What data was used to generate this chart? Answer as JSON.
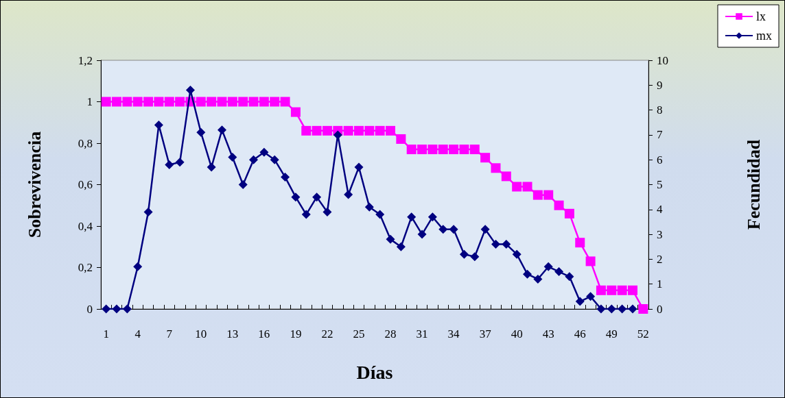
{
  "chart_data": {
    "type": "line",
    "xlabel": "Días",
    "ylabel": "Sobrevivencia",
    "y2label": "Fecundidad",
    "categories": [
      "1",
      null,
      null,
      "4",
      null,
      null,
      "7",
      null,
      null,
      "10",
      null,
      null,
      "13",
      null,
      null,
      "16",
      null,
      null,
      "19",
      null,
      null,
      "22",
      null,
      null,
      "25",
      null,
      null,
      "28",
      null,
      null,
      "31",
      null,
      null,
      "34",
      null,
      null,
      "37",
      null,
      null,
      "40",
      null,
      null,
      "43",
      null,
      null,
      "46",
      null,
      null,
      "49",
      null,
      null,
      "52"
    ],
    "series": [
      {
        "name": "lx",
        "color": "#ff00ff",
        "marker": "square",
        "values": [
          1,
          1,
          1,
          1,
          1,
          1,
          1,
          1,
          1,
          1,
          1,
          1,
          1,
          1,
          1,
          1,
          1,
          1,
          0.95,
          0.86,
          0.86,
          0.86,
          0.86,
          0.86,
          0.86,
          0.86,
          0.86,
          0.86,
          0.82,
          0.77,
          0.77,
          0.77,
          0.77,
          0.77,
          0.77,
          0.77,
          0.73,
          0.68,
          0.64,
          0.59,
          0.59,
          0.55,
          0.55,
          0.5,
          0.46,
          0.32,
          0.23,
          0.09,
          0.09,
          0.09,
          0.09,
          0
        ]
      },
      {
        "name": "mx",
        "color": "#000080",
        "marker": "diamond",
        "axis": "y2",
        "values": [
          0,
          0,
          0,
          1.7,
          3.9,
          7.4,
          5.8,
          5.9,
          8.8,
          7.1,
          5.7,
          7.2,
          6.1,
          5.0,
          6.0,
          6.3,
          6.0,
          5.3,
          4.5,
          3.8,
          4.5,
          3.9,
          7.0,
          4.6,
          5.7,
          4.1,
          3.8,
          2.8,
          2.5,
          3.7,
          3.0,
          3.7,
          3.2,
          3.2,
          2.2,
          2.1,
          3.2,
          2.6,
          2.6,
          2.2,
          1.4,
          1.2,
          1.7,
          1.5,
          1.3,
          0.3,
          0.5,
          0,
          0,
          0,
          0,
          null
        ]
      }
    ],
    "ylim": [
      0,
      1.2
    ],
    "yticks": [
      0,
      {
        "value": 0.2,
        "label": "0,2"
      },
      {
        "value": 0.4,
        "label": "0,4"
      },
      {
        "value": 0.6,
        "label": "0,6"
      },
      {
        "value": 0.8,
        "label": "0,8"
      },
      1,
      {
        "value": 1.2,
        "label": "1,2"
      }
    ],
    "y2lim": [
      0,
      10
    ],
    "y2ticks": [
      0,
      1,
      2,
      3,
      4,
      5,
      6,
      7,
      8,
      9,
      10
    ],
    "grid": false,
    "legend": "top right"
  }
}
